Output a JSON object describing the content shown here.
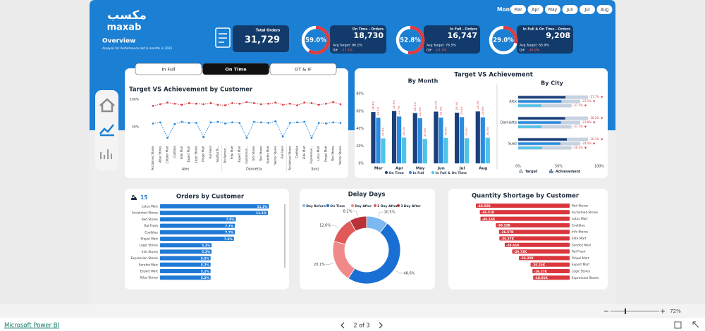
{
  "header": {
    "logo_arabic": "مكسب",
    "logo_latin": "maxab",
    "title": "Overview",
    "subtitle": "Analysis for Performance last 6 months in 2022"
  },
  "month_slicer": {
    "label": "Month",
    "months": [
      "Mar",
      "Apr",
      "May",
      "Jun",
      "Jul",
      "Aug"
    ]
  },
  "kpis": {
    "total_orders": {
      "label": "Total Orders",
      "value": "31,729"
    },
    "cards": [
      {
        "label": "On Time - Orders",
        "value": "18,730",
        "percent": {
          "value": 59.0,
          "label": "59.0%"
        },
        "target": "Avg Target: 86.1%",
        "dif_label": "Dif:",
        "dif": "-27.1%"
      },
      {
        "label": "In Full - Orders",
        "value": "16,747",
        "percent": {
          "value": 52.8,
          "label": "52.8%"
        },
        "target": "Avg Target: 76.5%",
        "dif_label": "Dif:",
        "dif": "-23.7%"
      },
      {
        "label": "In Full & On Time - Orders",
        "value": "9,208",
        "percent": {
          "value": 29.0,
          "label": "29.0%"
        },
        "target": "Avg Target: 65.9%",
        "dif_label": "Dif:",
        "dif": "-36.9%"
      }
    ]
  },
  "tabs": [
    "In Full",
    "On Time",
    "OT & IF"
  ],
  "panel_title": "Target VS Achievement",
  "chart_data": [
    {
      "type": "line",
      "title": "Target VS Achievement by Customer",
      "groups": [
        {
          "label": "Alex",
          "categories": [
            "Acclaimed Stores",
            "Atlas Stores",
            "Chipter Mart",
            "Coolblue",
            "Elite Mart",
            "Expert Mart",
            "Logic Stores",
            "Propel Mart",
            "Ral Fresh",
            "Sorefoz M..."
          ]
        },
        {
          "label": "Damietta",
          "categories": [
            "Acclaimed...",
            "Elite Mart",
            "Expert Mart",
            "Expression...",
            "Info Stores",
            "Red Stores",
            "Sorefoz Mart",
            "Vector Stores",
            "Ral Fresh"
          ]
        },
        {
          "label": "Suez",
          "categories": [
            "Acclaimed Stores",
            "Coolblue",
            "Elite Mart",
            "Expression...",
            "Lotus Mart",
            "Propel Mart",
            "Red Stores",
            "Vector Stores"
          ]
        }
      ],
      "series": [
        {
          "name": "Target",
          "color": "#d9434a",
          "values": [
            88,
            91,
            94,
            92,
            90,
            93,
            92,
            91,
            93,
            90,
            89,
            93,
            92,
            95,
            93,
            91,
            92,
            94,
            90,
            92,
            89,
            94,
            93,
            90,
            92,
            95,
            91
          ]
        },
        {
          "name": "Achievement",
          "color": "#2a8be0",
          "values": [
            56,
            58,
            30,
            55,
            59,
            57,
            57,
            31,
            58,
            59,
            56,
            58,
            57,
            30,
            59,
            58,
            57,
            60,
            32,
            57,
            58,
            59,
            30,
            57,
            56,
            58,
            57
          ]
        }
      ],
      "ylim": [
        20,
        100
      ],
      "yticks": [
        {
          "value": 50,
          "label": "50%"
        },
        {
          "value": 100,
          "label": "100%"
        }
      ]
    },
    {
      "type": "grouped-bar",
      "title": "By Month",
      "categories": [
        "Mar",
        "Apr",
        "May",
        "Jun",
        "Jul",
        "Aug"
      ],
      "series": [
        {
          "name": "On Time",
          "color": "#1b3f7a",
          "values": [
            58.9,
            60.1,
            57.8,
            59.4,
            58.2,
            59.6
          ],
          "annotations": [
            "-26.4%",
            "-26.9%",
            "-28.3%",
            "-26.7%",
            "-28.0%",
            "-26.3%"
          ]
        },
        {
          "name": "In Full",
          "color": "#2a8be0",
          "values": [
            52.4,
            53.8,
            51.9,
            52.6,
            53.1,
            52.9
          ],
          "annotations": [
            "-24.1%",
            "-22.7%",
            "-24.6%",
            "-23.9%",
            "-23.4%",
            "-23.6%"
          ]
        },
        {
          "name": "In Full & On Time",
          "color": "#4fc3e8",
          "values": [
            28.7,
            29.6,
            28.1,
            29.3,
            28.9,
            29.4
          ],
          "annotations": [
            "-37.2%",
            "-36.3%",
            "-37.8%",
            "-36.6%",
            "-37.0%",
            "-36.5%"
          ]
        }
      ],
      "ylim": [
        0,
        80
      ],
      "yticks": [
        {
          "value": 0,
          "label": "0%"
        },
        {
          "value": 20,
          "label": "20%"
        },
        {
          "value": 40,
          "label": "40%"
        },
        {
          "value": 60,
          "label": "60%"
        },
        {
          "value": 80,
          "label": "80%"
        }
      ]
    },
    {
      "type": "hbar-target",
      "title": "By City",
      "categories": [
        "Alex",
        "Damietta",
        "Suez"
      ],
      "legend": [
        "Target",
        "Achievement"
      ],
      "series": [
        {
          "name": "On Time",
          "color": "#1b3f7a",
          "values": [
            58.4,
            57.9,
            60.0
          ],
          "targets": [
            86.1,
            86.1,
            86.1
          ],
          "annotations": [
            "-27.7%",
            "-28.2%",
            "-26.1%"
          ]
        },
        {
          "name": "In Full",
          "color": "#2a8be0",
          "values": [
            53.4,
            52.7,
            52.1
          ],
          "targets": [
            76.5,
            76.5,
            76.5
          ],
          "annotations": [
            "-23.1%",
            "-23.8%",
            "-24.4%"
          ]
        },
        {
          "name": "In Full & On Time",
          "color": "#4fc3e8",
          "values": [
            28.7,
            28.8,
            29.6
          ],
          "targets": [
            65.9,
            65.9,
            65.9
          ],
          "annotations": [
            "-37.2%",
            "-37.1%",
            "-36.3%"
          ]
        }
      ],
      "xlim": [
        0,
        100
      ],
      "xticks": [
        {
          "value": 0,
          "label": "0%"
        },
        {
          "value": 50,
          "label": "50%"
        },
        {
          "value": 100,
          "label": "100%"
        }
      ]
    },
    {
      "type": "hbar",
      "title": "Orders by Customer",
      "count": 15,
      "color": "#1f7ad6",
      "categories": [
        "Lotus Mart",
        "Acclaimed Stores",
        "Red Stores",
        "Ral Fresh",
        "Coolblue",
        "Propel Mart",
        "Logic Stores",
        "Info Stores",
        "Expression Stores",
        "Sorefoz Mart",
        "Expert Mart",
        "Atlas Stores"
      ],
      "values": [
        11.2,
        11.1,
        7.8,
        7.7,
        7.7,
        7.6,
        5.3,
        5.3,
        5.2,
        5.2,
        5.2,
        5.2
      ],
      "value_labels": [
        "11.2%",
        "11.1%",
        "7.8%",
        "7.7%",
        "7.7%",
        "7.6%",
        "5.3%",
        "5.3%",
        "5.2%",
        "5.2%",
        "5.2%",
        "5.2%"
      ],
      "xlim": [
        0,
        11.6
      ]
    },
    {
      "type": "donut",
      "title": "Delay Days",
      "categories": [
        "Day Before",
        "On Time",
        "Day After",
        "2 Day After",
        "3 Day After"
      ],
      "values": [
        10.5,
        48.6,
        20.1,
        12.6,
        8.2
      ],
      "value_labels": [
        "10.5%",
        "48.6%",
        "20.1%",
        "12.6%",
        "8.2%"
      ],
      "colors": [
        "#7db9f0",
        "#1a6fd4",
        "#f08a8a",
        "#e05a5a",
        "#b8323a"
      ]
    },
    {
      "type": "hbar-negative",
      "title": "Quantity Shortage by Customer",
      "color": "#d9373d",
      "categories": [
        "Red Stores",
        "Acclaimed Stores",
        "Lotus Mart",
        "Coolblue",
        "Info Stores",
        "Elite Mart",
        "Sorefoz Mart",
        "Ral Fresh",
        "Propel Mart",
        "Expert Mart",
        "Logic Stores",
        "Expression Stores"
      ],
      "values": [
        -48550,
        -46510,
        -46160,
        -38220,
        -36570,
        -36370,
        -33610,
        -29730,
        -26250,
        -20240,
        -19270,
        -18910
      ],
      "value_labels": [
        "-48.55K",
        "-46.51K",
        "-46.16K",
        "-38.22K",
        "-36.57K",
        "-36.37K",
        "-33.61K",
        "-29.73K",
        "-26.25K",
        "-20.24K",
        "-19.27K",
        "-18.91K"
      ],
      "xlim": [
        -50000,
        0
      ]
    }
  ],
  "footer": {
    "brand": "Microsoft Power BI",
    "page": "2 of 3",
    "zoom": "72%"
  }
}
